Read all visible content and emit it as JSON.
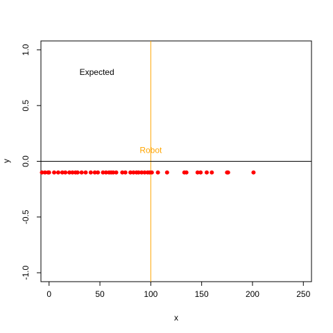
{
  "chart_data": {
    "type": "scatter",
    "title": "",
    "xlabel": "x",
    "ylabel": "y",
    "xlim": [
      -8,
      258
    ],
    "ylim": [
      -1.08,
      1.08
    ],
    "x_ticks": [
      0,
      50,
      100,
      150,
      200,
      250
    ],
    "y_ticks": [
      -1.0,
      -0.5,
      0.0,
      0.5,
      1.0
    ],
    "x_tick_labels": [
      "0",
      "50",
      "100",
      "150",
      "200",
      "250"
    ],
    "y_tick_labels": [
      "-1.0",
      "-0.5",
      "0.0",
      "0.5",
      "1.0"
    ],
    "grid": false,
    "point_color": "#ff0000",
    "robot_line_color": "#ffa500",
    "hline_color": "#000000",
    "series": [
      {
        "x": [
          -7,
          -4,
          -1,
          0,
          5,
          9,
          13,
          16,
          20,
          23,
          26,
          28,
          32,
          36,
          41,
          45,
          48,
          53,
          56,
          59,
          61,
          63,
          66,
          72,
          75,
          80,
          83,
          86,
          88,
          91,
          94,
          97,
          99,
          101,
          107,
          116,
          133,
          135,
          146,
          149,
          155,
          160,
          175,
          176,
          201
        ],
        "y": [
          -0.1,
          -0.1,
          -0.1,
          -0.1,
          -0.1,
          -0.1,
          -0.1,
          -0.1,
          -0.1,
          -0.1,
          -0.1,
          -0.1,
          -0.1,
          -0.1,
          -0.1,
          -0.1,
          -0.1,
          -0.1,
          -0.1,
          -0.1,
          -0.1,
          -0.1,
          -0.1,
          -0.1,
          -0.1,
          -0.1,
          -0.1,
          -0.1,
          -0.1,
          -0.1,
          -0.1,
          -0.1,
          -0.1,
          -0.1,
          -0.1,
          -0.1,
          -0.1,
          -0.1,
          -0.1,
          -0.1,
          -0.1,
          -0.1,
          -0.1,
          -0.1,
          -0.1
        ]
      }
    ],
    "reference_lines": {
      "vertical_x": 100,
      "horizontal_y": 0
    },
    "annotations": [
      {
        "text": "Expected",
        "x": 47,
        "y": 0.8,
        "color": "#000000"
      },
      {
        "text": "Robot",
        "x": 100,
        "y": 0.1,
        "color": "#ffa500"
      }
    ]
  }
}
